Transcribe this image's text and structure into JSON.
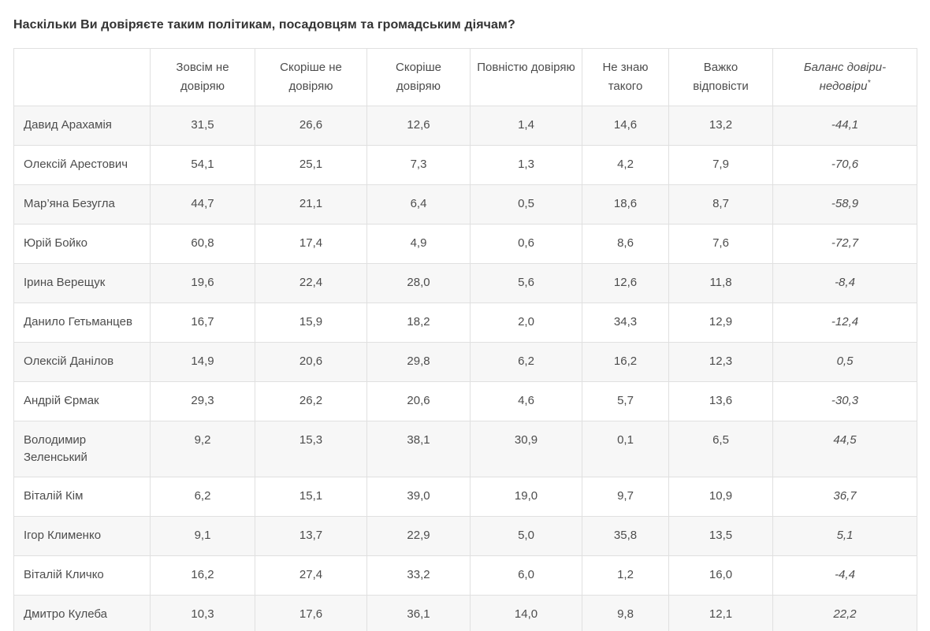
{
  "page": {
    "title": "Наскільки Ви довіряєте таким політикам, посадовцям та громадським діячам?"
  },
  "colors": {
    "background": "#ffffff",
    "title_text": "#333333",
    "cell_text": "#4d4d4d",
    "border": "#e0e0e0",
    "row_stripe": "#f7f7f7"
  },
  "table": {
    "columns": [
      "Зовсім не довіряю",
      "Скоріше не довіряю",
      "Скоріше довіряю",
      "Повністю довіряю",
      "Не знаю такого",
      "Важко відповісти"
    ],
    "balance_header": "Баланс довіри-недовіри",
    "balance_footnote_mark": "*",
    "rows": [
      {
        "name": "Давид Арахамія",
        "values": [
          "31,5",
          "26,6",
          "12,6",
          "1,4",
          "14,6",
          "13,2"
        ],
        "balance": "-44,1"
      },
      {
        "name": "Олексій Арестович",
        "values": [
          "54,1",
          "25,1",
          "7,3",
          "1,3",
          "4,2",
          "7,9"
        ],
        "balance": "-70,6"
      },
      {
        "name": "Мар’яна Безугла",
        "values": [
          "44,7",
          "21,1",
          "6,4",
          "0,5",
          "18,6",
          "8,7"
        ],
        "balance": "-58,9"
      },
      {
        "name": "Юрій Бойко",
        "values": [
          "60,8",
          "17,4",
          "4,9",
          "0,6",
          "8,6",
          "7,6"
        ],
        "balance": "-72,7"
      },
      {
        "name": "Ірина Верещук",
        "values": [
          "19,6",
          "22,4",
          "28,0",
          "5,6",
          "12,6",
          "11,8"
        ],
        "balance": "-8,4"
      },
      {
        "name": "Данило Гетьманцев",
        "values": [
          "16,7",
          "15,9",
          "18,2",
          "2,0",
          "34,3",
          "12,9"
        ],
        "balance": "-12,4"
      },
      {
        "name": "Олексій Данілов",
        "values": [
          "14,9",
          "20,6",
          "29,8",
          "6,2",
          "16,2",
          "12,3"
        ],
        "balance": "0,5"
      },
      {
        "name": "Андрій Єрмак",
        "values": [
          "29,3",
          "26,2",
          "20,6",
          "4,6",
          "5,7",
          "13,6"
        ],
        "balance": "-30,3"
      },
      {
        "name": "Володимир Зеленський",
        "values": [
          "9,2",
          "15,3",
          "38,1",
          "30,9",
          "0,1",
          "6,5"
        ],
        "balance": "44,5"
      },
      {
        "name": "Віталій Кім",
        "values": [
          "6,2",
          "15,1",
          "39,0",
          "19,0",
          "9,7",
          "10,9"
        ],
        "balance": "36,7"
      },
      {
        "name": "Ігор Клименко",
        "values": [
          "9,1",
          "13,7",
          "22,9",
          "5,0",
          "35,8",
          "13,5"
        ],
        "balance": "5,1"
      },
      {
        "name": "Віталій Кличко",
        "values": [
          "16,2",
          "27,4",
          "33,2",
          "6,0",
          "1,2",
          "16,0"
        ],
        "balance": "-4,4"
      },
      {
        "name": "Дмитро Кулеба",
        "values": [
          "10,3",
          "17,6",
          "36,1",
          "14,0",
          "9,8",
          "12,1"
        ],
        "balance": "22,2"
      }
    ]
  },
  "chart_data": {
    "type": "table",
    "title": "Наскільки Ви довіряєте таким політикам, посадовцям та громадським діячам?",
    "columns": [
      "Зовсім не довіряю",
      "Скоріше не довіряю",
      "Скоріше довіряю",
      "Повністю довіряю",
      "Не знаю такого",
      "Важко відповісти",
      "Баланс довіри-недовіри*"
    ],
    "rows": [
      {
        "name": "Давид Арахамія",
        "values": [
          31.5,
          26.6,
          12.6,
          1.4,
          14.6,
          13.2,
          -44.1
        ]
      },
      {
        "name": "Олексій Арестович",
        "values": [
          54.1,
          25.1,
          7.3,
          1.3,
          4.2,
          7.9,
          -70.6
        ]
      },
      {
        "name": "Мар’яна Безугла",
        "values": [
          44.7,
          21.1,
          6.4,
          0.5,
          18.6,
          8.7,
          -58.9
        ]
      },
      {
        "name": "Юрій Бойко",
        "values": [
          60.8,
          17.4,
          4.9,
          0.6,
          8.6,
          7.6,
          -72.7
        ]
      },
      {
        "name": "Ірина Верещук",
        "values": [
          19.6,
          22.4,
          28.0,
          5.6,
          12.6,
          11.8,
          -8.4
        ]
      },
      {
        "name": "Данило Гетьманцев",
        "values": [
          16.7,
          15.9,
          18.2,
          2.0,
          34.3,
          12.9,
          -12.4
        ]
      },
      {
        "name": "Олексій Данілов",
        "values": [
          14.9,
          20.6,
          29.8,
          6.2,
          16.2,
          12.3,
          0.5
        ]
      },
      {
        "name": "Андрій Єрмак",
        "values": [
          29.3,
          26.2,
          20.6,
          4.6,
          5.7,
          13.6,
          -30.3
        ]
      },
      {
        "name": "Володимир Зеленський",
        "values": [
          9.2,
          15.3,
          38.1,
          30.9,
          0.1,
          6.5,
          44.5
        ]
      },
      {
        "name": "Віталій Кім",
        "values": [
          6.2,
          15.1,
          39.0,
          19.0,
          9.7,
          10.9,
          36.7
        ]
      },
      {
        "name": "Ігор Клименко",
        "values": [
          9.1,
          13.7,
          22.9,
          5.0,
          35.8,
          13.5,
          5.1
        ]
      },
      {
        "name": "Віталій Кличко",
        "values": [
          16.2,
          27.4,
          33.2,
          6.0,
          1.2,
          16.0,
          -4.4
        ]
      },
      {
        "name": "Дмитро Кулеба",
        "values": [
          10.3,
          17.6,
          36.1,
          14.0,
          9.8,
          12.1,
          22.2
        ]
      }
    ]
  }
}
